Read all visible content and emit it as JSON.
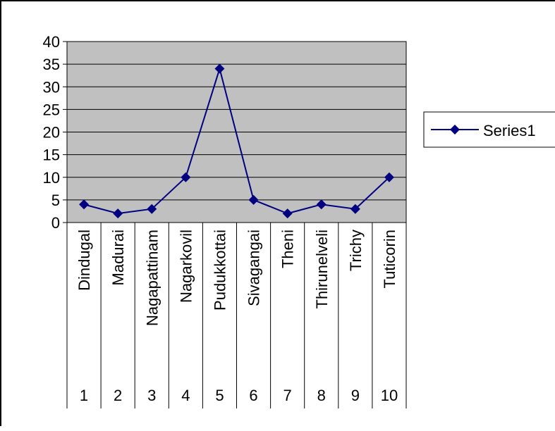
{
  "chart_data": {
    "type": "line",
    "categories": [
      "Dindugal",
      "Madurai",
      "Nagapattinam",
      "Nagarkovil",
      "Pudukkottai",
      "Sivagangai",
      "Theni",
      "Thirunelveli",
      "Trichy",
      "Tuticorin"
    ],
    "category_numbers": [
      "1",
      "2",
      "3",
      "4",
      "5",
      "6",
      "7",
      "8",
      "9",
      "10"
    ],
    "series": [
      {
        "name": "Series1",
        "values": [
          4,
          2,
          3,
          10,
          34,
          5,
          2,
          4,
          3,
          10
        ]
      }
    ],
    "ylim": [
      0,
      40
    ],
    "yticks": [
      "0",
      "5",
      "10",
      "15",
      "20",
      "25",
      "30",
      "35",
      "40"
    ],
    "grid": true,
    "legend": "right",
    "colors": {
      "series": "#000080",
      "plot_background": "#c0c0c0",
      "grid": "#000000"
    }
  }
}
